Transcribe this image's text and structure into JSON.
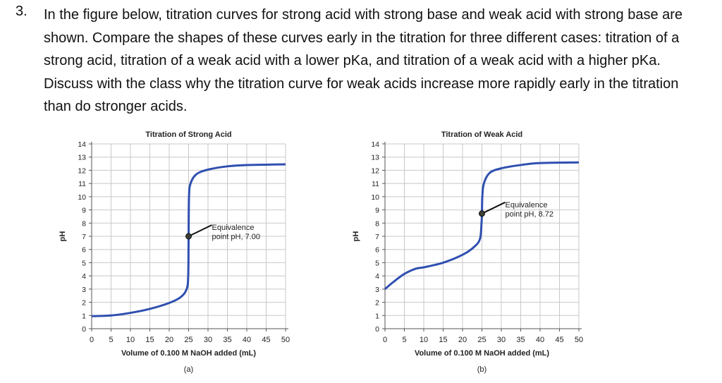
{
  "question": {
    "number": "3.",
    "text": "In the figure below, titration curves for strong acid with strong base and weak acid with strong base are shown. Compare the shapes of these curves early in the titration for three different cases: titration of a strong acid, titration of a weak acid with a lower pKa, and titration of a weak acid with a higher pKa. Discuss with the class why the titration curve for weak acids increase more rapidly early in the titration than do stronger acids."
  },
  "chart_data": [
    {
      "type": "line",
      "title": "Titration of Strong Acid",
      "xlabel": "Volume of 0.100 M NaOH added (mL)",
      "ylabel": "pH",
      "caption": "(a)",
      "xlim": [
        0,
        50
      ],
      "ylim": [
        0,
        14
      ],
      "xticks": [
        "0",
        "5",
        "10",
        "15",
        "20",
        "25",
        "30",
        "35",
        "40",
        "45",
        "50"
      ],
      "yticks": [
        "0",
        "1",
        "2",
        "3",
        "4",
        "5",
        "6",
        "7",
        "8",
        "9",
        "10",
        "11",
        "12",
        "13",
        "14"
      ],
      "grid": true,
      "line_color": "#2f4fb0",
      "x": [
        0,
        5,
        10,
        15,
        20,
        23,
        24.5,
        24.9,
        25,
        25.1,
        25.5,
        27,
        30,
        35,
        40,
        50
      ],
      "y": [
        0.95,
        1.0,
        1.2,
        1.5,
        1.95,
        2.4,
        3.0,
        4.0,
        7.0,
        10.0,
        11.0,
        11.7,
        12.05,
        12.3,
        12.4,
        12.45
      ],
      "annotation": {
        "x": 25,
        "y": 7.0,
        "line1": "Equivalence",
        "line2": "point pH, 7.00"
      }
    },
    {
      "type": "line",
      "title": "Titration of Weak Acid",
      "xlabel": "Volume of 0.100 M NaOH added (mL)",
      "ylabel": "pH",
      "caption": "(b)",
      "xlim": [
        0,
        50
      ],
      "ylim": [
        0,
        14
      ],
      "xticks": [
        "0",
        "5",
        "10",
        "15",
        "20",
        "25",
        "30",
        "35",
        "40",
        "45",
        "50"
      ],
      "yticks": [
        "0",
        "1",
        "2",
        "3",
        "4",
        "5",
        "6",
        "7",
        "8",
        "9",
        "10",
        "11",
        "12",
        "13",
        "14"
      ],
      "grid": true,
      "line_color": "#2f4fb0",
      "x": [
        0,
        2,
        5,
        8,
        10,
        15,
        20,
        23,
        24.5,
        24.9,
        25,
        25.1,
        25.5,
        27,
        30,
        35,
        40,
        50
      ],
      "y": [
        3.0,
        3.5,
        4.15,
        4.55,
        4.65,
        5.0,
        5.6,
        6.2,
        6.8,
        8.0,
        8.72,
        10.0,
        11.0,
        11.8,
        12.15,
        12.4,
        12.55,
        12.6
      ],
      "annotation": {
        "x": 25,
        "y": 8.72,
        "line1": "Equivalence",
        "line2": "point pH, 8.72"
      }
    }
  ]
}
